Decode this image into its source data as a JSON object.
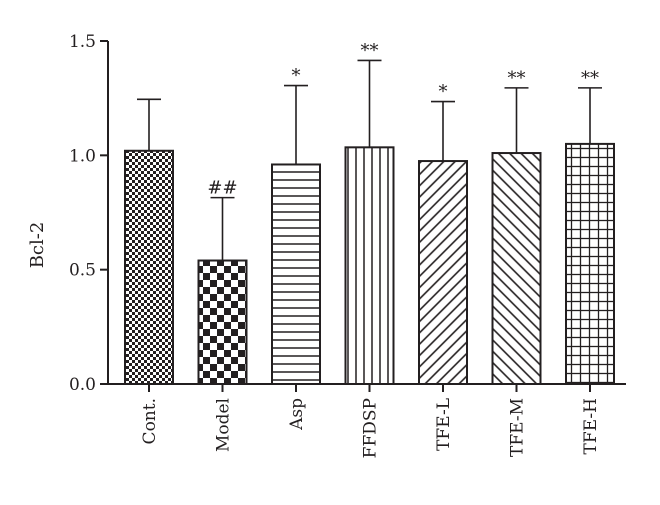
{
  "chart_data": {
    "type": "bar",
    "ylabel": "Bcl-2",
    "ylim": [
      0,
      1.5
    ],
    "yticks": [
      "0.0",
      "0.5",
      "1.0",
      "1.5"
    ],
    "categories": [
      "Cont.",
      "Model",
      "Asp",
      "FFDSP",
      "TFE-L",
      "TFE-M",
      "TFE-H"
    ],
    "values": [
      1.02,
      0.54,
      0.96,
      1.035,
      0.975,
      1.01,
      1.05
    ],
    "error_upper": [
      1.245,
      0.815,
      1.305,
      1.415,
      1.235,
      1.295,
      1.295
    ],
    "significance": [
      "",
      "##",
      "*",
      "**",
      "*",
      "**",
      "**"
    ],
    "bar_patterns": [
      "fine-checker",
      "checker",
      "horizontal-lines",
      "vertical-lines",
      "diagonal-right",
      "diagonal-left",
      "grid"
    ],
    "colors": {
      "ink": "#231f20",
      "fill": "#ffffff"
    }
  }
}
